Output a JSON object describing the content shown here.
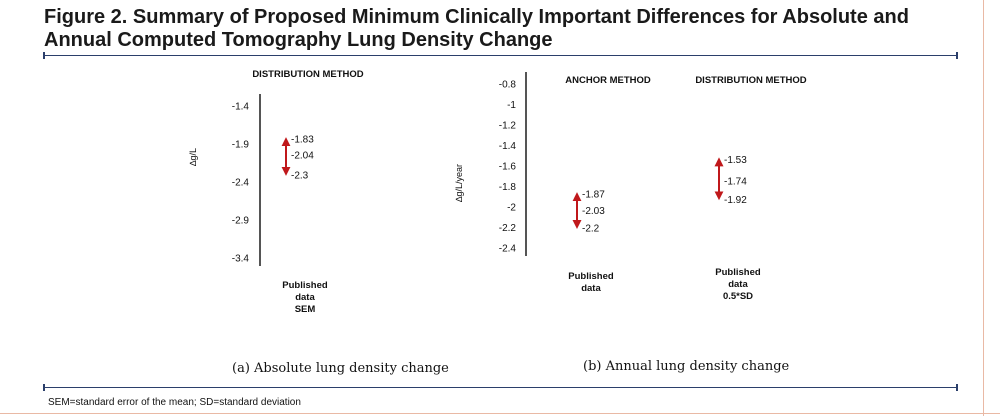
{
  "figure": {
    "title": "Figure 2. Summary of Proposed Minimum Clinically Important Differences for Absolute and Annual Computed Tomography Lung Density Change",
    "footnote": "SEM=standard error of the mean; SD=standard deviation",
    "colors": {
      "rule": "#2b3f6b",
      "arrow": "#c0181b",
      "border": "#e9b9a5"
    }
  },
  "chart_data": [
    {
      "type": "interval",
      "caption": "(a) Absolute lung density change",
      "ylabel": "∆g/L",
      "yticks": [
        -1.4,
        -1.9,
        -2.4,
        -2.9,
        -3.4
      ],
      "ylim": [
        -3.4,
        -1.4
      ],
      "groups": [
        {
          "header": "DISTRIBUTION  METHOD",
          "label_lines": [
            "Published",
            "data",
            "SEM"
          ],
          "upper": -1.83,
          "mid": -2.04,
          "lower": -2.3,
          "labels": [
            "-1.83",
            "-2.04",
            "-2.3"
          ]
        }
      ]
    },
    {
      "type": "interval",
      "caption": "(b) Annual lung density change",
      "ylabel": "∆g/L/year",
      "yticks": [
        -0.8,
        -1,
        -1.2,
        -1.4,
        -1.6,
        -1.8,
        -2,
        -2.2,
        -2.4
      ],
      "ylim": [
        -2.4,
        -0.8
      ],
      "groups": [
        {
          "header": "ANCHOR METHOD",
          "label_lines": [
            "Published",
            "data"
          ],
          "upper": -1.87,
          "mid": -2.03,
          "lower": -2.2,
          "labels": [
            "-1.87",
            "-2.03",
            "-2.2"
          ]
        },
        {
          "header": "DISTRIBUTION  METHOD",
          "label_lines": [
            "Published",
            "data",
            "0.5*SD"
          ],
          "upper": -1.53,
          "mid": -1.74,
          "lower": -1.92,
          "labels": [
            "-1.53",
            "-1.74",
            "-1.92"
          ]
        }
      ]
    }
  ]
}
